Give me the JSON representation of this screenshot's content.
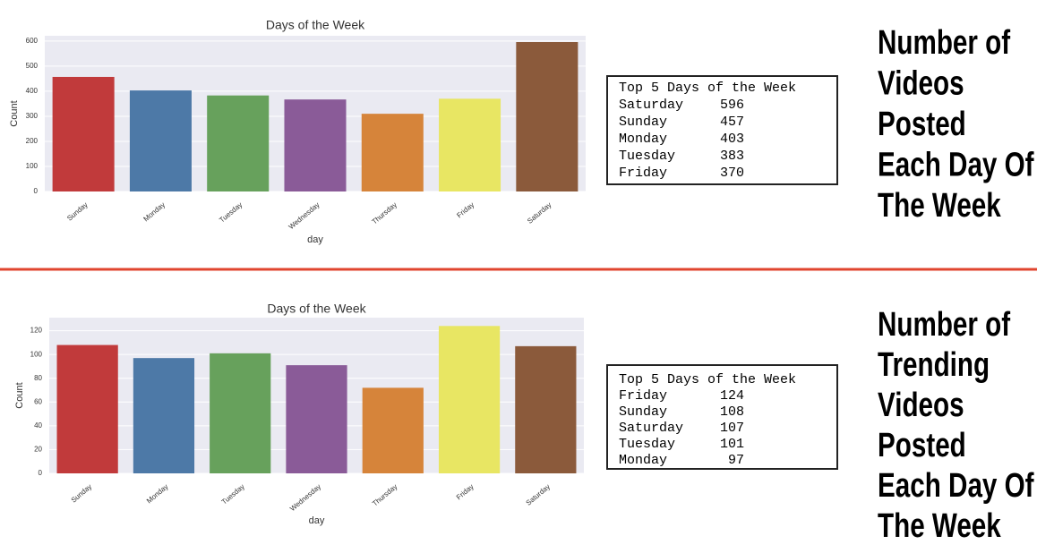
{
  "chart_data": [
    {
      "type": "bar",
      "title": "Days of the Week",
      "x_label": "day",
      "y_label": "Count",
      "categories": [
        "Sunday",
        "Monday",
        "Tuesday",
        "Wednesday",
        "Thursday",
        "Friday",
        "Saturday"
      ],
      "values": [
        457,
        403,
        383,
        367,
        310,
        370,
        596
      ],
      "colors": [
        "#c13a3b",
        "#4d79a7",
        "#67a15c",
        "#8a5b98",
        "#d6843a",
        "#e8e663",
        "#8b5a3b"
      ],
      "ylim": [
        0,
        621
      ],
      "yticks": [
        0,
        100,
        200,
        300,
        400,
        500,
        600
      ],
      "grid": true
    },
    {
      "type": "bar",
      "title": "Days of the Week",
      "x_label": "day",
      "y_label": "Count",
      "categories": [
        "Sunday",
        "Monday",
        "Tuesday",
        "Wednesday",
        "Thursday",
        "Friday",
        "Saturday"
      ],
      "values": [
        108,
        97,
        101,
        91,
        72,
        124,
        107
      ],
      "colors": [
        "#c13a3b",
        "#4d79a7",
        "#67a15c",
        "#8a5b98",
        "#d6843a",
        "#e8e663",
        "#8b5a3b"
      ],
      "ylim": [
        0,
        131
      ],
      "yticks": [
        0,
        20,
        40,
        60,
        80,
        100,
        120
      ],
      "grid": true
    }
  ],
  "tables": [
    {
      "title": "Top 5 Days of the Week",
      "rows": [
        [
          "Saturday",
          596
        ],
        [
          "Sunday",
          457
        ],
        [
          "Monday",
          403
        ],
        [
          "Tuesday",
          383
        ],
        [
          "Friday",
          370
        ]
      ]
    },
    {
      "title": "Top 5 Days of the Week",
      "rows": [
        [
          "Friday",
          124
        ],
        [
          "Sunday",
          108
        ],
        [
          "Saturday",
          107
        ],
        [
          "Tuesday",
          101
        ],
        [
          "Monday",
          97
        ]
      ]
    }
  ],
  "headings": [
    [
      "Number of",
      "Videos",
      "Posted",
      "Each Day Of",
      "The Week"
    ],
    [
      "Number of",
      "Trending",
      "Videos",
      "Posted",
      "Each Day Of",
      "The Week"
    ]
  ]
}
